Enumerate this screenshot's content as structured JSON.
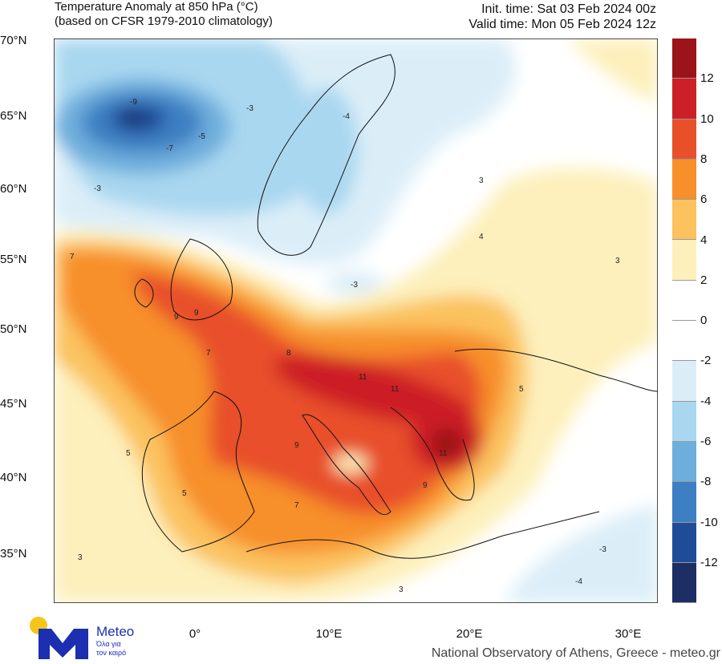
{
  "header": {
    "title_line1": "Temperature Anomaly at 850 hPa (°C)",
    "title_line2": "(based on CFSR 1979-2010 climatology)",
    "init_time": "Init. time: Sat 03 Feb 2024 00z",
    "valid_time": "Valid time: Mon 05 Feb 2024 12z"
  },
  "map": {
    "lat_labels": [
      "70°N",
      "65°N",
      "60°N",
      "55°N",
      "50°N",
      "45°N",
      "40°N",
      "35°N"
    ],
    "lon_labels": [
      "0°",
      "10°E",
      "20°E",
      "30°E"
    ],
    "contour_labels": [
      "-9",
      "-7",
      "-5",
      "-3",
      "-4",
      "-3",
      "7",
      "9",
      "9",
      "7",
      "8",
      "11",
      "11",
      "11",
      "9",
      "9",
      "7",
      "5",
      "5",
      "3",
      "3",
      "3",
      "-3",
      "-4",
      "4",
      "3",
      "-3",
      "5"
    ]
  },
  "colorbar": {
    "labels": [
      "12",
      "10",
      "8",
      "6",
      "4",
      "2",
      "0",
      "-2",
      "-4",
      "-6",
      "-8",
      "-10",
      "-12"
    ],
    "colors": [
      "#9b1419",
      "#cc1f27",
      "#e8502a",
      "#f78f2b",
      "#fbc25e",
      "#fdf0bc",
      "#ffffff",
      "#ffffff",
      "#dbeef8",
      "#a9d7f0",
      "#6eaedc",
      "#3d7fc3",
      "#1f4c98",
      "#1c2e63"
    ]
  },
  "logo": {
    "name": "Meteo",
    "tagline1": "Όλα για",
    "tagline2": "τον καιρό",
    "brand_color": "#1b2fb0",
    "sun_color": "#f5c518"
  },
  "credit": "National Observatory of Athens, Greece - meteo.gr"
}
